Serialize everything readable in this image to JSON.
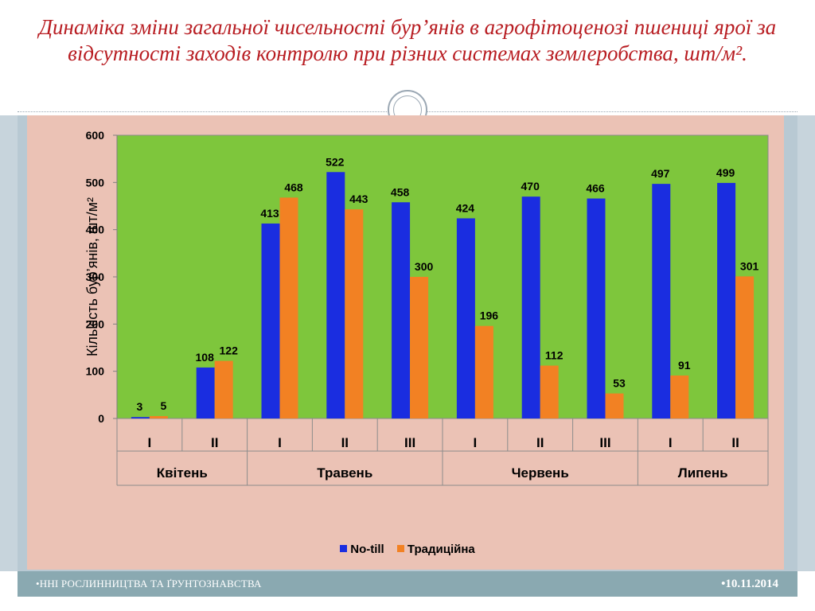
{
  "slide": {
    "title": "Динаміка зміни загальної чисельності бур’янів в агрофітоценозі пшениці ярої  за відсутності заходів контролю при різних системах землеробства, шт/м².",
    "footer_left": "•ННІ РОСЛИННИЦТВА ТА ҐРУНТОЗНАВСТВА",
    "footer_right": "•10.11.2014"
  },
  "colors": {
    "plot_background": "#7ec63c",
    "series_no_till": "#1a2de0",
    "series_traditional": "#f28123",
    "title": "#b81d22"
  },
  "chart_data": {
    "type": "bar",
    "ylabel": "Кількість бур’янів, шт/м²",
    "ylim": [
      0,
      600
    ],
    "yticks": [
      0,
      100,
      200,
      300,
      400,
      500,
      600
    ],
    "categories": [
      "I",
      "II",
      "I",
      "II",
      "III",
      "I",
      "II",
      "III",
      "I",
      "II"
    ],
    "groups": [
      {
        "label": "Квітень",
        "count": 2
      },
      {
        "label": "Травень",
        "count": 3
      },
      {
        "label": "Червень",
        "count": 3
      },
      {
        "label": "Липень",
        "count": 2
      }
    ],
    "series": [
      {
        "name": "No-till",
        "values": [
          3,
          108,
          413,
          522,
          458,
          424,
          470,
          466,
          497,
          499
        ]
      },
      {
        "name": "Традиційна",
        "values": [
          5,
          122,
          468,
          443,
          300,
          196,
          112,
          53,
          91,
          301
        ]
      }
    ],
    "data_labels": true,
    "grid": false,
    "legend_position": "bottom"
  }
}
